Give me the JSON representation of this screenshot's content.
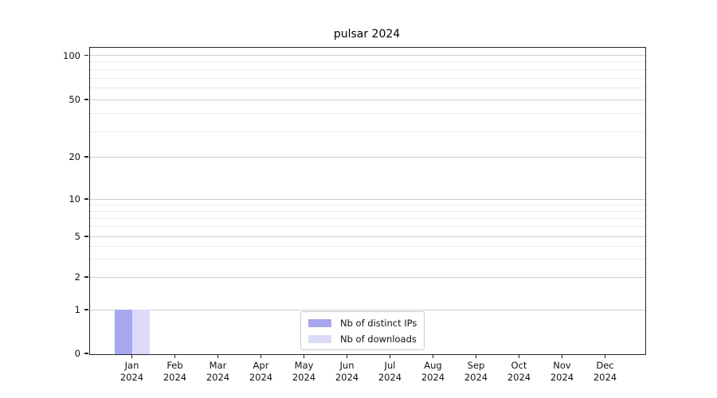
{
  "figure": {
    "background": "#ffffff"
  },
  "chart_data": {
    "type": "bar",
    "title": "pulsar 2024",
    "categories": [
      {
        "month": "Jan",
        "year": "2024"
      },
      {
        "month": "Feb",
        "year": "2024"
      },
      {
        "month": "Mar",
        "year": "2024"
      },
      {
        "month": "Apr",
        "year": "2024"
      },
      {
        "month": "May",
        "year": "2024"
      },
      {
        "month": "Jun",
        "year": "2024"
      },
      {
        "month": "Jul",
        "year": "2024"
      },
      {
        "month": "Aug",
        "year": "2024"
      },
      {
        "month": "Sep",
        "year": "2024"
      },
      {
        "month": "Oct",
        "year": "2024"
      },
      {
        "month": "Nov",
        "year": "2024"
      },
      {
        "month": "Dec",
        "year": "2024"
      }
    ],
    "series": [
      {
        "name": "Nb of distinct IPs",
        "color": "#a7a7ef",
        "values": [
          1,
          0,
          0,
          0,
          0,
          0,
          0,
          0,
          0,
          0,
          0,
          0
        ]
      },
      {
        "name": "Nb of downloads",
        "color": "#dbdbf7",
        "values": [
          1,
          0,
          0,
          0,
          0,
          0,
          0,
          0,
          0,
          0,
          0,
          0
        ]
      }
    ],
    "y_axis": {
      "ticks": [
        0,
        1,
        2,
        5,
        10,
        20,
        50,
        100
      ],
      "minor_ticks": [
        3,
        4,
        6,
        7,
        8,
        9,
        30,
        40,
        60,
        70,
        80,
        90
      ],
      "scale": "log-like",
      "ylim": [
        0,
        110
      ]
    },
    "grid": "horizontal-on",
    "legend_position": "lower-center"
  }
}
